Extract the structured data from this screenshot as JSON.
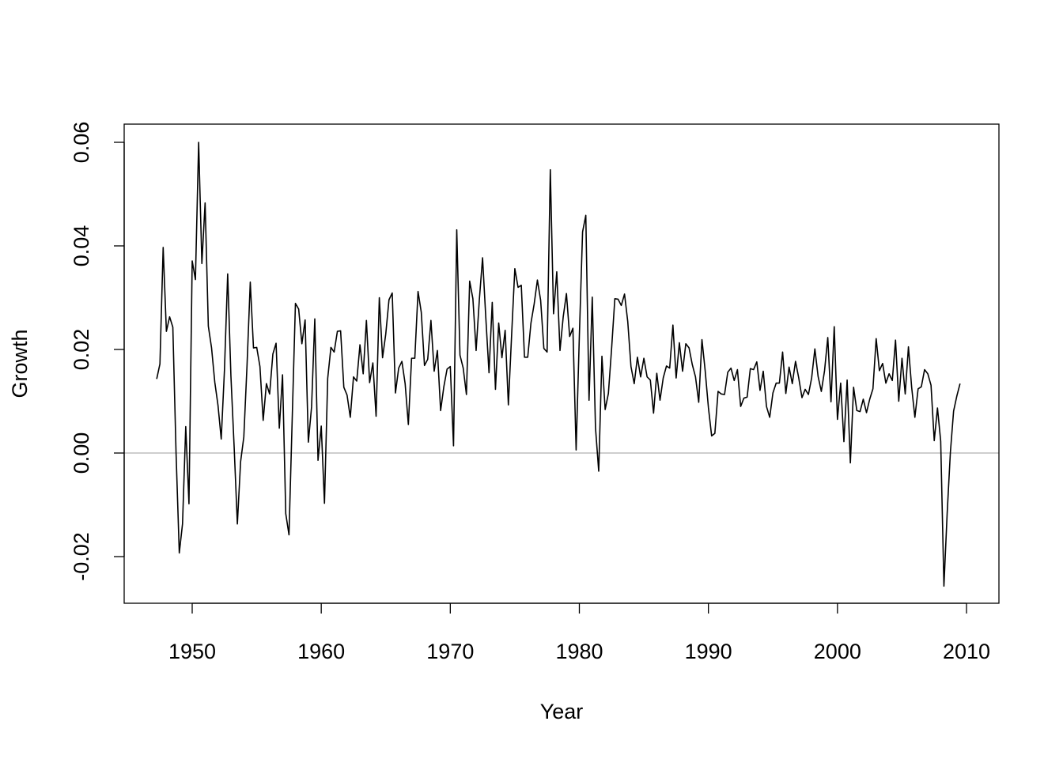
{
  "chart_data": {
    "type": "line",
    "title": "",
    "xlabel": "Year",
    "ylabel": "Growth",
    "xlim": [
      1947.0,
      2010.0
    ],
    "ylim": [
      -0.026,
      0.06
    ],
    "x_ticks": [
      1950,
      1960,
      1970,
      1980,
      1990,
      2000,
      2010
    ],
    "x_tick_labels": [
      "1950",
      "1960",
      "1970",
      "1980",
      "1990",
      "2000",
      "2010"
    ],
    "y_ticks": [
      -0.02,
      0.0,
      0.02,
      0.04,
      0.06
    ],
    "y_tick_labels": [
      "-0.02",
      "0.00",
      "0.02",
      "0.04",
      "0.06"
    ],
    "grid": false,
    "legend": "none",
    "reference_line": {
      "y": 0.0,
      "color": "#bebebe"
    },
    "series_color": "#000000",
    "series": [
      {
        "name": "",
        "x_start": 1947.25,
        "x_step": 0.25,
        "values": [
          0.0143,
          0.0172,
          0.0397,
          0.0235,
          0.0263,
          0.0243,
          0.0,
          -0.0193,
          -0.0137,
          0.0051,
          -0.0098,
          0.0371,
          0.0335,
          0.06,
          0.0366,
          0.0483,
          0.0245,
          0.0203,
          0.0137,
          0.0092,
          0.0027,
          0.016,
          0.0346,
          0.0149,
          0.0012,
          -0.0137,
          -0.0017,
          0.0031,
          0.017,
          0.033,
          0.0203,
          0.0204,
          0.0167,
          0.0063,
          0.0134,
          0.0114,
          0.0191,
          0.0212,
          0.0048,
          0.0151,
          -0.0117,
          -0.0158,
          0.0066,
          0.0289,
          0.0278,
          0.0211,
          0.0257,
          0.0021,
          0.0089,
          0.0259,
          -0.0014,
          0.0052,
          -0.0097,
          0.0144,
          0.0204,
          0.0195,
          0.0235,
          0.0236,
          0.0127,
          0.0112,
          0.0069,
          0.0147,
          0.0139,
          0.0209,
          0.0153,
          0.0256,
          0.0136,
          0.0174,
          0.0071,
          0.03,
          0.0184,
          0.023,
          0.0296,
          0.0309,
          0.0116,
          0.0164,
          0.0177,
          0.0134,
          0.0055,
          0.0183,
          0.0183,
          0.0312,
          0.0272,
          0.0169,
          0.0181,
          0.0256,
          0.0158,
          0.0198,
          0.0082,
          0.0128,
          0.0162,
          0.0167,
          0.0014,
          0.0431,
          0.0189,
          0.0164,
          0.0113,
          0.0332,
          0.0298,
          0.0198,
          0.0296,
          0.0377,
          0.0262,
          0.0155,
          0.0291,
          0.0123,
          0.0251,
          0.0184,
          0.0237,
          0.0093,
          0.0227,
          0.0356,
          0.032,
          0.0324,
          0.0185,
          0.0185,
          0.0251,
          0.0288,
          0.0334,
          0.0295,
          0.0202,
          0.0195,
          0.0547,
          0.0269,
          0.035,
          0.0198,
          0.0263,
          0.0308,
          0.0225,
          0.0241,
          0.0006,
          0.0226,
          0.0427,
          0.0459,
          0.0102,
          0.0301,
          0.0049,
          -0.0035,
          0.0187,
          0.0084,
          0.0115,
          0.0202,
          0.0298,
          0.0297,
          0.0285,
          0.0307,
          0.0254,
          0.0167,
          0.0134,
          0.0185,
          0.0147,
          0.0183,
          0.0147,
          0.0141,
          0.0077,
          0.0154,
          0.0102,
          0.0145,
          0.0168,
          0.0164,
          0.0247,
          0.0145,
          0.0213,
          0.0158,
          0.0211,
          0.0203,
          0.0171,
          0.0147,
          0.0098,
          0.0219,
          0.0159,
          0.0088,
          0.0033,
          0.0038,
          0.0119,
          0.0114,
          0.0113,
          0.0156,
          0.0164,
          0.014,
          0.0161,
          0.009,
          0.0106,
          0.0108,
          0.0163,
          0.0161,
          0.0176,
          0.0121,
          0.0158,
          0.009,
          0.0069,
          0.0116,
          0.0135,
          0.0135,
          0.0195,
          0.0115,
          0.0166,
          0.0134,
          0.0177,
          0.0145,
          0.0107,
          0.0123,
          0.0113,
          0.0145,
          0.0201,
          0.0148,
          0.0119,
          0.0159,
          0.0223,
          0.0099,
          0.0244,
          0.0065,
          0.0135,
          0.0022,
          0.0141,
          -0.0019,
          0.0127,
          0.0082,
          0.008,
          0.0104,
          0.0078,
          0.0104,
          0.0124,
          0.0221,
          0.0159,
          0.0173,
          0.0135,
          0.0153,
          0.014,
          0.0218,
          0.01,
          0.0183,
          0.0114,
          0.0205,
          0.0127,
          0.0069,
          0.0124,
          0.0128,
          0.0161,
          0.0153,
          0.0131,
          0.0024,
          0.0087,
          0.0023,
          -0.0257,
          -0.0117,
          0.0001,
          0.0081,
          0.011,
          0.0134
        ]
      }
    ]
  }
}
